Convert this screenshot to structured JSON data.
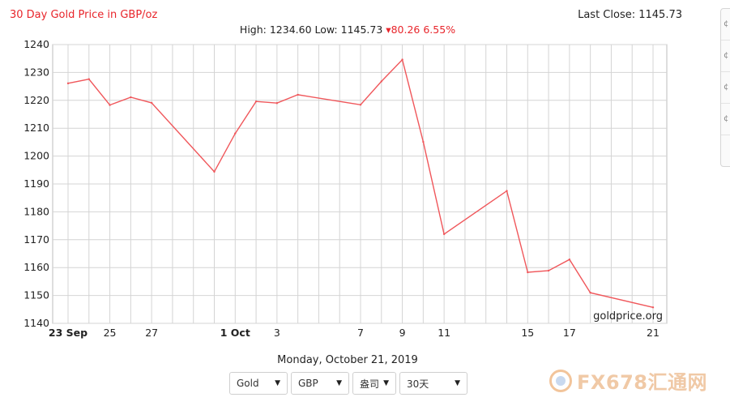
{
  "header": {
    "title": "30 Day Gold Price in GBP/oz",
    "last_close_label": "Last Close: 1145.73",
    "high_low": "High: 1234.60 Low: 1145.73",
    "change_arrow": "▾",
    "change": "80.26",
    "change_pct": "6.55%"
  },
  "footer": {
    "date": "Monday, October 21, 2019",
    "metal_select": "Gold",
    "currency_select": "GBP",
    "unit_select": "盎司",
    "period_select": "30天"
  },
  "watermark": {
    "source": "goldprice.org",
    "brand": "FX678汇通网"
  },
  "colors": {
    "line": "#f0575b",
    "title": "#e8252b",
    "grid": "#d4d4d4"
  },
  "chart_data": {
    "type": "line",
    "title": "30 Day Gold Price in GBP/oz",
    "ylim": [
      1140,
      1240
    ],
    "yticks": [
      1140,
      1150,
      1160,
      1170,
      1180,
      1190,
      1200,
      1210,
      1220,
      1230,
      1240
    ],
    "xlim": [
      "2019-09-23",
      "2019-10-21"
    ],
    "xticks": [
      {
        "x": "2019-09-23",
        "label": "23 Sep",
        "bold": true
      },
      {
        "x": "2019-09-25",
        "label": "25",
        "bold": false
      },
      {
        "x": "2019-09-27",
        "label": "27",
        "bold": false
      },
      {
        "x": "2019-10-01",
        "label": "1 Oct",
        "bold": true
      },
      {
        "x": "2019-10-03",
        "label": "3",
        "bold": false
      },
      {
        "x": "2019-10-07",
        "label": "7",
        "bold": false
      },
      {
        "x": "2019-10-09",
        "label": "9",
        "bold": false
      },
      {
        "x": "2019-10-11",
        "label": "11",
        "bold": false
      },
      {
        "x": "2019-10-15",
        "label": "15",
        "bold": false
      },
      {
        "x": "2019-10-17",
        "label": "17",
        "bold": false
      },
      {
        "x": "2019-10-21",
        "label": "21",
        "bold": false
      }
    ],
    "series": [
      {
        "points": [
          {
            "x": "2019-09-23",
            "y": 1226.1
          },
          {
            "x": "2019-09-24",
            "y": 1227.6
          },
          {
            "x": "2019-09-25",
            "y": 1218.3
          },
          {
            "x": "2019-09-26",
            "y": 1221.1
          },
          {
            "x": "2019-09-27",
            "y": 1219.1
          },
          {
            "x": "2019-09-30",
            "y": 1194.4
          },
          {
            "x": "2019-10-01",
            "y": 1208.1
          },
          {
            "x": "2019-10-02",
            "y": 1219.6
          },
          {
            "x": "2019-10-03",
            "y": 1219.0
          },
          {
            "x": "2019-10-04",
            "y": 1222.0
          },
          {
            "x": "2019-10-07",
            "y": 1218.4
          },
          {
            "x": "2019-10-08",
            "y": 1226.8
          },
          {
            "x": "2019-10-09",
            "y": 1234.6
          },
          {
            "x": "2019-10-10",
            "y": 1205.1
          },
          {
            "x": "2019-10-11",
            "y": 1172.0
          },
          {
            "x": "2019-10-14",
            "y": 1187.5
          },
          {
            "x": "2019-10-15",
            "y": 1158.3
          },
          {
            "x": "2019-10-16",
            "y": 1158.9
          },
          {
            "x": "2019-10-17",
            "y": 1162.9
          },
          {
            "x": "2019-10-18",
            "y": 1151.0
          },
          {
            "x": "2019-10-21",
            "y": 1145.73
          }
        ]
      }
    ],
    "grid": true
  }
}
